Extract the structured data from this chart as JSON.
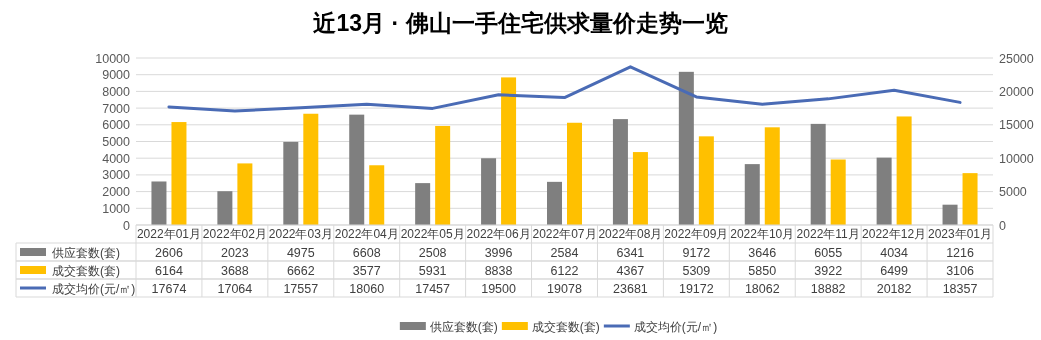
{
  "chart_data": {
    "type": "bar",
    "title": "近13月 · 佛山一手住宅供求量价走势一览",
    "categories": [
      "2022年01月",
      "2022年02月",
      "2022年03月",
      "2022年04月",
      "2022年05月",
      "2022年06月",
      "2022年07月",
      "2022年08月",
      "2022年09月",
      "2022年10月",
      "2022年11月",
      "2022年12月",
      "2023年01月"
    ],
    "series": [
      {
        "name": "供应套数(套)",
        "color": "#7f7f7f",
        "values": [
          2606,
          2023,
          4975,
          6608,
          2508,
          3996,
          2584,
          6341,
          9172,
          3646,
          6055,
          4034,
          1216
        ]
      },
      {
        "name": "成交套数(套)",
        "color": "#ffc000",
        "values": [
          6164,
          3688,
          6662,
          3577,
          5931,
          8838,
          6122,
          4367,
          5309,
          5850,
          3922,
          6499,
          3106
        ]
      },
      {
        "name": "成交均价(元/㎡)",
        "type": "line",
        "axis": "y2",
        "color": "#4a6bb5",
        "values": [
          17674,
          17064,
          17557,
          18060,
          17457,
          19500,
          19078,
          23681,
          19172,
          18062,
          18882,
          20182,
          18357
        ]
      }
    ],
    "ylim": [
      0,
      10000
    ],
    "yticks": [
      0,
      1000,
      2000,
      3000,
      4000,
      5000,
      6000,
      7000,
      8000,
      9000,
      10000
    ],
    "y2lim": [
      0,
      25000
    ],
    "y2ticks": [
      0,
      5000,
      10000,
      15000,
      20000,
      25000
    ],
    "grid": "y",
    "legend": "bottom",
    "data_labels": true
  }
}
